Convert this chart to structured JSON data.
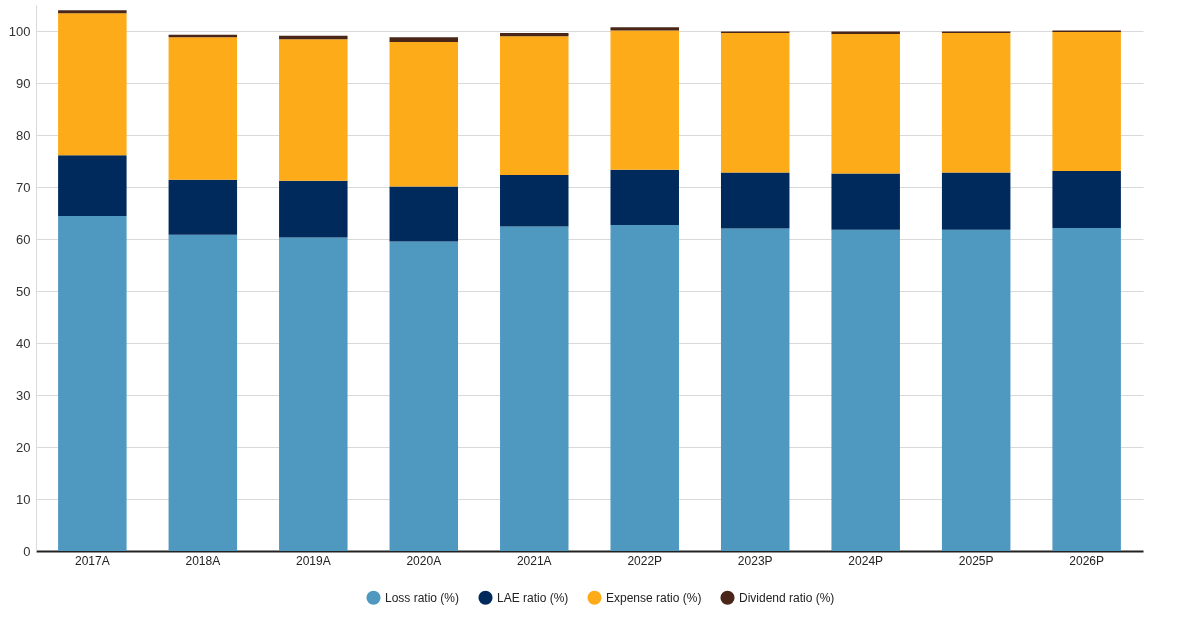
{
  "chart_data": {
    "type": "bar",
    "stacked": true,
    "categories": [
      "2017A",
      "2018A",
      "2019A",
      "2020A",
      "2021A",
      "2022P",
      "2023P",
      "2024P",
      "2025P",
      "2026P"
    ],
    "series": [
      {
        "name": "Loss ratio (%)",
        "color": "#4f99c1",
        "values": [
          64.4,
          60.8,
          60.3,
          59.5,
          62.4,
          62.7,
          62.0,
          61.8,
          61.8,
          62.1
        ]
      },
      {
        "name": "LAE ratio (%)",
        "color": "#002a5c",
        "values": [
          11.7,
          10.6,
          10.9,
          10.6,
          9.9,
          10.6,
          10.8,
          10.8,
          11.0,
          11.0
        ]
      },
      {
        "name": "Expense ratio (%)",
        "color": "#fdab19",
        "values": [
          27.3,
          27.4,
          27.2,
          27.8,
          26.7,
          26.8,
          26.8,
          26.8,
          26.8,
          26.7
        ]
      },
      {
        "name": "Dividend ratio (%)",
        "color": "#4a2618",
        "values": [
          0.6,
          0.5,
          0.7,
          0.9,
          0.6,
          0.6,
          0.3,
          0.5,
          0.3,
          0.3
        ]
      }
    ],
    "ylim": [
      0,
      105
    ],
    "yticks": [
      0,
      10,
      20,
      30,
      40,
      50,
      60,
      70,
      80,
      90,
      100
    ],
    "grid": "y",
    "legend": "bottom"
  }
}
